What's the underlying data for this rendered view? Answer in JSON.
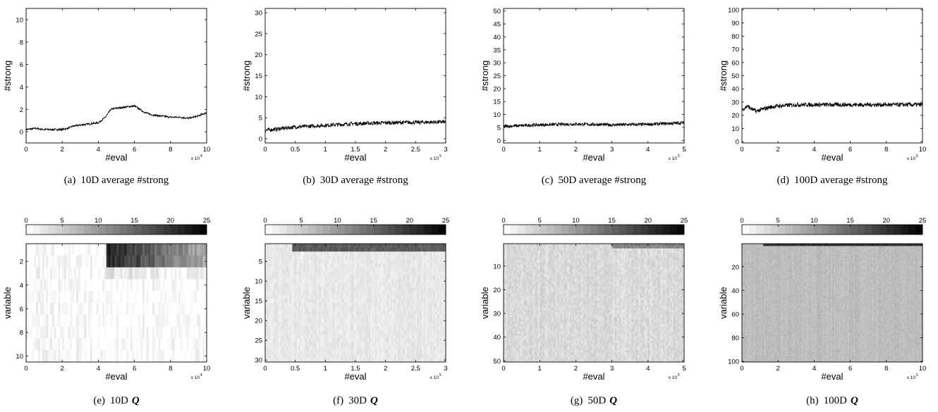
{
  "colorbar": {
    "ticks": [
      0,
      5,
      10,
      15,
      20,
      25
    ],
    "range": [
      0,
      25
    ],
    "steps": 25,
    "scheme": "white-to-black"
  },
  "chart_data": [
    {
      "id": "a",
      "type": "line",
      "caption_label": "(a)",
      "caption_text": "10D average #strong",
      "xlabel": "#eval",
      "ylabel": "#strong",
      "xlim": [
        0,
        10
      ],
      "ylim": [
        -1,
        11
      ],
      "x_ticks": [
        0,
        2,
        4,
        6,
        8,
        10
      ],
      "y_ticks": [
        0,
        2,
        4,
        6,
        8,
        10
      ],
      "x_exponent": "x 10",
      "x_exponent_power": "4",
      "noise": 0.08,
      "series": [
        {
          "x": [
            0,
            0.5,
            1,
            1.5,
            2,
            2.3,
            2.6,
            3,
            3.5,
            4,
            4.4,
            4.7,
            5,
            5.5,
            6,
            6.3,
            6.6,
            7,
            7.5,
            8,
            8.5,
            9,
            9.5,
            10
          ],
          "y": [
            0.2,
            0.3,
            0.2,
            0.2,
            0.2,
            0.3,
            0.5,
            0.6,
            0.7,
            0.8,
            1.3,
            2.0,
            2.1,
            2.2,
            2.3,
            2.0,
            1.7,
            1.5,
            1.4,
            1.3,
            1.3,
            1.2,
            1.4,
            1.7
          ]
        }
      ]
    },
    {
      "id": "b",
      "type": "line",
      "caption_label": "(b)",
      "caption_text": "30D average #strong",
      "xlabel": "#eval",
      "ylabel": "#strong",
      "xlim": [
        0,
        3
      ],
      "ylim": [
        -1,
        31
      ],
      "x_ticks": [
        0,
        0.5,
        1,
        1.5,
        2,
        2.5,
        3
      ],
      "y_ticks": [
        0,
        5,
        10,
        15,
        20,
        25,
        30
      ],
      "x_exponent": "x 10",
      "x_exponent_power": "5",
      "noise": 0.45,
      "series": [
        {
          "x": [
            0,
            0.25,
            0.5,
            0.75,
            1,
            1.5,
            2,
            2.5,
            3
          ],
          "y": [
            2.0,
            2.4,
            2.8,
            3.0,
            3.2,
            3.6,
            3.8,
            3.9,
            4.0
          ]
        }
      ]
    },
    {
      "id": "c",
      "type": "line",
      "caption_label": "(c)",
      "caption_text": "50D average #strong",
      "xlabel": "#eval",
      "ylabel": "#strong",
      "xlim": [
        0,
        5
      ],
      "ylim": [
        -1,
        51
      ],
      "x_ticks": [
        0,
        1,
        2,
        3,
        4,
        5
      ],
      "y_ticks": [
        0,
        5,
        10,
        15,
        20,
        25,
        30,
        35,
        40,
        45,
        50
      ],
      "x_exponent": "x 10",
      "x_exponent_power": "5",
      "noise": 0.6,
      "series": [
        {
          "x": [
            0,
            1,
            2,
            3,
            4,
            5
          ],
          "y": [
            5.4,
            6.0,
            6.3,
            6.0,
            6.2,
            6.8
          ]
        }
      ]
    },
    {
      "id": "d",
      "type": "line",
      "caption_label": "(d)",
      "caption_text": "100D average #strong",
      "xlabel": "#eval",
      "ylabel": "#strong",
      "xlim": [
        0,
        10
      ],
      "ylim": [
        -1,
        101
      ],
      "x_ticks": [
        0,
        2,
        4,
        6,
        8,
        10
      ],
      "y_ticks": [
        0,
        10,
        20,
        30,
        40,
        50,
        60,
        70,
        80,
        90,
        100
      ],
      "x_exponent": "x 10",
      "x_exponent_power": "5",
      "noise": 1.6,
      "series": [
        {
          "x": [
            0,
            0.3,
            0.5,
            0.8,
            1,
            1.5,
            2,
            3,
            4,
            6,
            8,
            10
          ],
          "y": [
            24,
            27,
            25,
            23,
            24,
            26,
            27,
            28,
            28,
            28,
            28,
            28
          ]
        }
      ]
    },
    {
      "id": "e",
      "type": "heatmap",
      "caption_label": "(e)",
      "caption_text": "10D",
      "caption_symbol": "Q",
      "xlabel": "#eval",
      "ylabel": "variable",
      "xlim": [
        0,
        10
      ],
      "ylim": [
        0.5,
        10.5
      ],
      "x_ticks": [
        0,
        2,
        4,
        6,
        8,
        10
      ],
      "y_ticks": [
        2,
        4,
        6,
        8,
        10
      ],
      "x_exponent": "x 10",
      "x_exponent_power": "4",
      "rows": 10,
      "cols": 90,
      "background": 0.3,
      "noise": 3.0,
      "bands": [
        {
          "rows": [
            1,
            2
          ],
          "x_from": 4.5,
          "x_to": 10,
          "peak": 22,
          "decay": 14
        },
        {
          "rows": [
            3
          ],
          "x_from": 4.5,
          "x_to": 10,
          "peak": 2.5,
          "decay": 2
        }
      ]
    },
    {
      "id": "f",
      "type": "heatmap",
      "caption_label": "(f)",
      "caption_text": "30D",
      "caption_symbol": "Q",
      "xlabel": "#eval",
      "ylabel": "variable",
      "xlim": [
        0,
        3
      ],
      "ylim": [
        0.5,
        30.5
      ],
      "x_ticks": [
        0,
        0.5,
        1,
        1.5,
        2,
        2.5,
        3
      ],
      "y_ticks": [
        5,
        10,
        15,
        20,
        25,
        30
      ],
      "x_exponent": "x 10",
      "x_exponent_power": "5",
      "rows": 30,
      "cols": 120,
      "background": 2.2,
      "noise": 1.6,
      "bands": [
        {
          "rows": [
            1,
            2
          ],
          "x_from": 0.45,
          "x_to": 3,
          "peak": 16,
          "decay": 0
        }
      ]
    },
    {
      "id": "g",
      "type": "heatmap",
      "caption_label": "(g)",
      "caption_text": "50D",
      "caption_symbol": "Q",
      "xlabel": "#eval",
      "ylabel": "variable",
      "xlim": [
        0,
        5
      ],
      "ylim": [
        0.5,
        50.5
      ],
      "x_ticks": [
        0,
        1,
        2,
        3,
        4,
        5
      ],
      "y_ticks": [
        10,
        20,
        30,
        40,
        50
      ],
      "x_exponent": "x 10",
      "x_exponent_power": "5",
      "rows": 50,
      "cols": 120,
      "background": 3.6,
      "noise": 2.2,
      "bands": [
        {
          "rows": [
            1,
            2
          ],
          "x_from": 3.0,
          "x_to": 5,
          "peak": 12,
          "decay": 0
        }
      ]
    },
    {
      "id": "h",
      "type": "heatmap",
      "caption_label": "(h)",
      "caption_text": "100D",
      "caption_symbol": "Q",
      "xlabel": "#eval",
      "ylabel": "variable",
      "xlim": [
        0,
        10
      ],
      "ylim": [
        0.5,
        100.5
      ],
      "x_ticks": [
        0,
        2,
        4,
        6,
        8,
        10
      ],
      "y_ticks": [
        20,
        40,
        60,
        80,
        100
      ],
      "x_exponent": "x 10",
      "x_exponent_power": "5",
      "rows": 100,
      "cols": 160,
      "background": 6.5,
      "noise": 1.8,
      "bands": [
        {
          "rows": [
            1,
            2
          ],
          "x_from": 1.2,
          "x_to": 10,
          "peak": 20,
          "decay": 0
        }
      ]
    }
  ]
}
